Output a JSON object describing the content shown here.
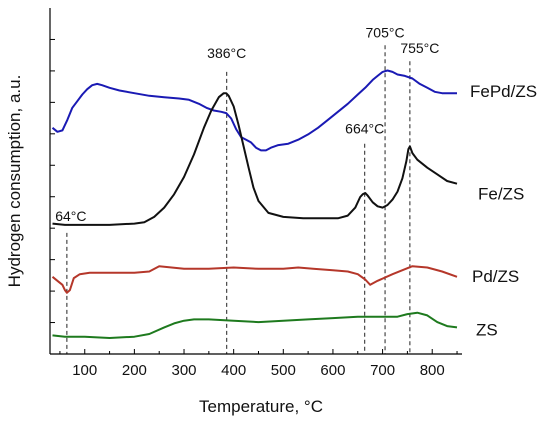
{
  "chart_data": {
    "type": "line",
    "xlabel": "Temperature, °C",
    "ylabel": "Hydrogen consumption, a.u.",
    "xlim": [
      30,
      860
    ],
    "x_ticks": [
      100,
      200,
      300,
      400,
      500,
      600,
      700,
      800
    ],
    "y_ticks_labeled": false,
    "grid": false,
    "legend": "series labels placed at right end of each curve",
    "series": [
      {
        "name": "FePd/ZS",
        "color": "#1a1ab4",
        "x": [
          35,
          45,
          55,
          65,
          75,
          85,
          95,
          105,
          115,
          125,
          135,
          150,
          170,
          200,
          230,
          260,
          290,
          310,
          330,
          345,
          360,
          375,
          385,
          395,
          405,
          415,
          425,
          435,
          445,
          455,
          465,
          475,
          490,
          510,
          530,
          550,
          570,
          590,
          610,
          630,
          650,
          665,
          680,
          690,
          700,
          710,
          720,
          730,
          745,
          760,
          775,
          790,
          805,
          820,
          835,
          850
        ],
        "y": [
          0.7,
          0.67,
          0.68,
          0.76,
          0.85,
          0.9,
          0.95,
          0.99,
          1.02,
          1.03,
          1.02,
          1.0,
          0.98,
          0.96,
          0.94,
          0.93,
          0.92,
          0.91,
          0.88,
          0.85,
          0.83,
          0.82,
          0.81,
          0.77,
          0.69,
          0.63,
          0.61,
          0.59,
          0.55,
          0.53,
          0.53,
          0.55,
          0.57,
          0.58,
          0.61,
          0.65,
          0.7,
          0.76,
          0.82,
          0.88,
          0.95,
          1.0,
          1.06,
          1.09,
          1.12,
          1.13,
          1.12,
          1.1,
          1.09,
          1.07,
          1.03,
          1.0,
          0.97,
          0.96,
          0.96,
          0.96
        ]
      },
      {
        "name": "Fe/ZS",
        "color": "#111111",
        "x": [
          35,
          60,
          100,
          150,
          200,
          220,
          240,
          260,
          280,
          300,
          320,
          340,
          355,
          370,
          380,
          385,
          390,
          400,
          410,
          420,
          430,
          440,
          450,
          470,
          500,
          540,
          580,
          610,
          630,
          645,
          655,
          660,
          665,
          670,
          680,
          690,
          700,
          710,
          720,
          730,
          740,
          748,
          752,
          755,
          760,
          770,
          790,
          810,
          830,
          850
        ],
        "y": [
          -0.02,
          -0.03,
          -0.03,
          -0.03,
          -0.02,
          -0.01,
          0.03,
          0.1,
          0.2,
          0.33,
          0.5,
          0.7,
          0.83,
          0.93,
          0.96,
          0.96,
          0.94,
          0.86,
          0.72,
          0.56,
          0.4,
          0.25,
          0.15,
          0.06,
          0.03,
          0.02,
          0.02,
          0.02,
          0.04,
          0.1,
          0.18,
          0.2,
          0.21,
          0.19,
          0.14,
          0.11,
          0.1,
          0.12,
          0.16,
          0.22,
          0.32,
          0.45,
          0.54,
          0.56,
          0.51,
          0.46,
          0.4,
          0.35,
          0.3,
          0.28
        ]
      },
      {
        "name": "Pd/ZS",
        "color": "#b5372a",
        "x": [
          35,
          45,
          55,
          60,
          64,
          70,
          78,
          90,
          110,
          150,
          200,
          230,
          250,
          275,
          300,
          350,
          400,
          450,
          500,
          530,
          560,
          600,
          630,
          650,
          665,
          675,
          690,
          720,
          760,
          790,
          820,
          850
        ],
        "y": [
          -0.42,
          -0.45,
          -0.48,
          -0.52,
          -0.54,
          -0.52,
          -0.43,
          -0.4,
          -0.39,
          -0.39,
          -0.39,
          -0.38,
          -0.34,
          -0.35,
          -0.36,
          -0.36,
          -0.35,
          -0.36,
          -0.36,
          -0.35,
          -0.36,
          -0.37,
          -0.38,
          -0.4,
          -0.44,
          -0.48,
          -0.45,
          -0.4,
          -0.34,
          -0.35,
          -0.38,
          -0.42
        ]
      },
      {
        "name": "ZS",
        "color": "#1e7a1e",
        "x": [
          35,
          60,
          100,
          150,
          200,
          230,
          260,
          280,
          300,
          320,
          350,
          400,
          450,
          500,
          550,
          600,
          650,
          700,
          730,
          750,
          770,
          790,
          810,
          830,
          850
        ],
        "y": [
          -0.86,
          -0.87,
          -0.87,
          -0.88,
          -0.87,
          -0.85,
          -0.8,
          -0.77,
          -0.75,
          -0.74,
          -0.74,
          -0.75,
          -0.76,
          -0.75,
          -0.74,
          -0.73,
          -0.72,
          -0.72,
          -0.72,
          -0.7,
          -0.69,
          -0.71,
          -0.76,
          -0.79,
          -0.8
        ]
      }
    ],
    "annotations": [
      {
        "label": "64°C",
        "x": 64,
        "y_top": -0.09
      },
      {
        "label": "386°C",
        "x": 386,
        "y_top": 1.12
      },
      {
        "label": "664°C",
        "x": 664,
        "y_top": 0.58
      },
      {
        "label": "705°C",
        "x": 705,
        "y_top": 1.32
      },
      {
        "label": "755°C",
        "x": 755,
        "y_top": 1.2
      }
    ]
  }
}
